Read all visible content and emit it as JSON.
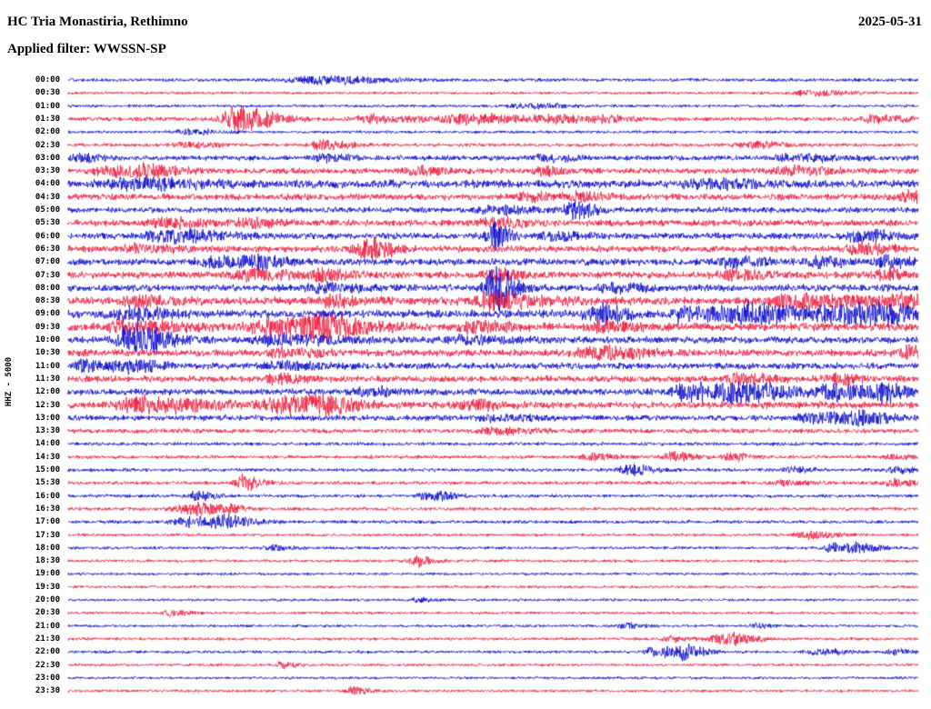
{
  "header": {
    "station": "HC Tria Monastiria, Rethimno",
    "date": "2025-05-31",
    "filter_line": "Applied filter: WWSSN-SP"
  },
  "axis": {
    "scale_label": "HHZ - 5000"
  },
  "chart_data": {
    "type": "line",
    "subtype": "helicorder-seismogram",
    "title": "HC Tria Monastiria, Rethimno",
    "date": "2025-05-31",
    "filter": "WWSSN-SP",
    "channel": "HHZ",
    "scale": 5000,
    "minutes_per_line": 30,
    "colors": {
      "blue": "#0000cc",
      "red": "#ee1133",
      "label": "#000000"
    },
    "event_format": "[x_fraction_of_line, amplitude_px, width_px]",
    "rows": [
      {
        "time": "00:00",
        "color": "blue",
        "noise": 1.5,
        "events": [
          [
            0.29,
            4,
            30
          ]
        ]
      },
      {
        "time": "00:30",
        "color": "red",
        "noise": 1.2,
        "events": [
          [
            0.87,
            3,
            18
          ]
        ]
      },
      {
        "time": "01:00",
        "color": "blue",
        "noise": 1.3,
        "events": [
          [
            0.54,
            2.5,
            18
          ]
        ]
      },
      {
        "time": "01:30",
        "color": "red",
        "noise": 1.8,
        "events": [
          [
            0.2,
            14,
            16
          ],
          [
            0.36,
            4,
            22
          ],
          [
            0.47,
            5,
            26
          ],
          [
            0.57,
            3.5,
            18
          ],
          [
            0.63,
            3,
            14
          ],
          [
            0.95,
            4,
            14
          ]
        ]
      },
      {
        "time": "02:00",
        "color": "blue",
        "noise": 1.3,
        "events": [
          [
            0.14,
            2.5,
            14
          ]
        ]
      },
      {
        "time": "02:30",
        "color": "red",
        "noise": 1.5,
        "events": [
          [
            0.3,
            6,
            11
          ],
          [
            0.14,
            3,
            14
          ],
          [
            0.8,
            3,
            18
          ]
        ]
      },
      {
        "time": "03:00",
        "color": "blue",
        "noise": 2.2,
        "events": [
          [
            0.015,
            4,
            10
          ],
          [
            0.3,
            3.5,
            12
          ],
          [
            0.56,
            4,
            12
          ],
          [
            0.85,
            3,
            26
          ]
        ]
      },
      {
        "time": "03:30",
        "color": "red",
        "noise": 2.5,
        "events": [
          [
            0.05,
            4,
            22
          ],
          [
            0.09,
            4,
            18
          ],
          [
            0.41,
            4,
            12
          ],
          [
            0.56,
            3.5,
            12
          ],
          [
            0.85,
            4,
            18
          ]
        ]
      },
      {
        "time": "04:00",
        "color": "blue",
        "noise": 3.5,
        "events": [
          [
            0.08,
            4,
            36
          ],
          [
            0.75,
            3.5,
            28
          ]
        ]
      },
      {
        "time": "04:30",
        "color": "red",
        "noise": 2.8,
        "events": [
          [
            0.54,
            4,
            14
          ],
          [
            0.6,
            4,
            12
          ],
          [
            0.99,
            6,
            12
          ]
        ]
      },
      {
        "time": "05:00",
        "color": "blue",
        "noise": 2.5,
        "events": [
          [
            0.595,
            9,
            9
          ],
          [
            0.5,
            4,
            18
          ]
        ]
      },
      {
        "time": "05:30",
        "color": "red",
        "noise": 2.8,
        "events": [
          [
            0.11,
            4,
            18
          ],
          [
            0.21,
            4,
            14
          ],
          [
            0.5,
            5,
            16
          ]
        ]
      },
      {
        "time": "06:00",
        "color": "blue",
        "noise": 2.8,
        "events": [
          [
            0.12,
            6,
            26
          ],
          [
            0.5,
            15,
            7
          ],
          [
            0.57,
            4,
            14
          ],
          [
            0.93,
            5,
            18
          ]
        ]
      },
      {
        "time": "06:30",
        "color": "red",
        "noise": 2.8,
        "events": [
          [
            0.35,
            12,
            11
          ],
          [
            0.08,
            4,
            18
          ],
          [
            0.93,
            6,
            14
          ]
        ]
      },
      {
        "time": "07:00",
        "color": "blue",
        "noise": 3.0,
        "events": [
          [
            0.17,
            5,
            18
          ],
          [
            0.22,
            5,
            14
          ],
          [
            0.78,
            5,
            14
          ],
          [
            0.88,
            5,
            12
          ],
          [
            0.96,
            6,
            11
          ]
        ]
      },
      {
        "time": "07:30",
        "color": "red",
        "noise": 3.0,
        "events": [
          [
            0.21,
            6,
            18
          ],
          [
            0.3,
            5,
            14
          ],
          [
            0.5,
            6,
            11
          ],
          [
            0.78,
            5,
            14
          ],
          [
            0.96,
            5,
            10
          ]
        ]
      },
      {
        "time": "08:00",
        "color": "blue",
        "noise": 3.0,
        "events": [
          [
            0.5,
            26,
            9
          ],
          [
            0.3,
            4,
            18
          ],
          [
            0.64,
            4,
            14
          ]
        ]
      },
      {
        "time": "08:30",
        "color": "red",
        "noise": 3.5,
        "events": [
          [
            0.5,
            8,
            22
          ],
          [
            0.31,
            5,
            14
          ],
          [
            0.08,
            5,
            18
          ],
          [
            0.86,
            6,
            36
          ],
          [
            0.98,
            5,
            14
          ]
        ]
      },
      {
        "time": "09:00",
        "color": "blue",
        "noise": 3.5,
        "events": [
          [
            0.07,
            6,
            18
          ],
          [
            0.62,
            10,
            13
          ],
          [
            0.73,
            8,
            18
          ],
          [
            0.8,
            9,
            26
          ],
          [
            0.9,
            10,
            22
          ],
          [
            0.96,
            9,
            13
          ]
        ]
      },
      {
        "time": "09:30",
        "color": "red",
        "noise": 3.5,
        "events": [
          [
            0.07,
            7,
            22
          ],
          [
            0.25,
            9,
            30
          ],
          [
            0.3,
            8,
            18
          ],
          [
            0.475,
            7,
            14
          ],
          [
            0.63,
            5,
            14
          ]
        ]
      },
      {
        "time": "10:00",
        "color": "blue",
        "noise": 3.0,
        "events": [
          [
            0.075,
            16,
            16
          ],
          [
            0.25,
            5,
            26
          ],
          [
            0.47,
            4,
            18
          ]
        ]
      },
      {
        "time": "10:30",
        "color": "red",
        "noise": 3.0,
        "events": [
          [
            0.62,
            6,
            22
          ],
          [
            0.99,
            6,
            13
          ],
          [
            0.25,
            4,
            18
          ]
        ]
      },
      {
        "time": "11:00",
        "color": "blue",
        "noise": 2.8,
        "events": [
          [
            0.02,
            6,
            11
          ],
          [
            0.07,
            7,
            13
          ],
          [
            0.25,
            4,
            18
          ]
        ]
      },
      {
        "time": "11:30",
        "color": "red",
        "noise": 2.8,
        "events": [
          [
            0.24,
            5,
            14
          ],
          [
            0.79,
            5,
            14
          ],
          [
            0.9,
            5,
            11
          ]
        ]
      },
      {
        "time": "12:00",
        "color": "blue",
        "noise": 2.8,
        "events": [
          [
            0.73,
            8,
            18
          ],
          [
            0.79,
            10,
            22
          ],
          [
            0.9,
            9,
            18
          ],
          [
            0.96,
            7,
            11
          ],
          [
            0.35,
            4,
            14
          ]
        ]
      },
      {
        "time": "12:30",
        "color": "red",
        "noise": 3.0,
        "events": [
          [
            0.09,
            8,
            30
          ],
          [
            0.25,
            9,
            22
          ],
          [
            0.3,
            7,
            14
          ],
          [
            0.47,
            5,
            14
          ]
        ]
      },
      {
        "time": "13:00",
        "color": "blue",
        "noise": 2.5,
        "events": [
          [
            0.88,
            6,
            22
          ],
          [
            0.93,
            5,
            13
          ],
          [
            0.5,
            3,
            18
          ]
        ]
      },
      {
        "time": "13:30",
        "color": "red",
        "noise": 2.0,
        "events": [
          [
            0.5,
            3,
            18
          ]
        ]
      },
      {
        "time": "14:00",
        "color": "blue",
        "noise": 1.5,
        "events": []
      },
      {
        "time": "14:30",
        "color": "red",
        "noise": 1.5,
        "events": [
          [
            0.615,
            4,
            11
          ],
          [
            0.71,
            5,
            9
          ],
          [
            0.78,
            4,
            9
          ],
          [
            0.97,
            3,
            9
          ]
        ]
      },
      {
        "time": "15:00",
        "color": "blue",
        "noise": 1.5,
        "events": [
          [
            0.66,
            6,
            11
          ],
          [
            0.85,
            3,
            9
          ],
          [
            0.97,
            4,
            9
          ]
        ]
      },
      {
        "time": "15:30",
        "color": "red",
        "noise": 1.5,
        "events": [
          [
            0.205,
            8,
            9
          ],
          [
            0.84,
            3,
            11
          ],
          [
            0.97,
            4,
            9
          ]
        ]
      },
      {
        "time": "16:00",
        "color": "blue",
        "noise": 1.5,
        "events": [
          [
            0.15,
            5,
            8
          ],
          [
            0.42,
            4,
            9
          ],
          [
            0.44,
            3,
            8
          ]
        ]
      },
      {
        "time": "16:30",
        "color": "red",
        "noise": 1.5,
        "events": [
          [
            0.135,
            4,
            13
          ],
          [
            0.155,
            4,
            11
          ],
          [
            0.19,
            3,
            9
          ]
        ]
      },
      {
        "time": "17:00",
        "color": "blue",
        "noise": 1.5,
        "events": [
          [
            0.14,
            5,
            18
          ],
          [
            0.185,
            5,
            13
          ]
        ]
      },
      {
        "time": "17:30",
        "color": "red",
        "noise": 1.3,
        "events": [
          [
            0.87,
            4,
            13
          ]
        ]
      },
      {
        "time": "18:00",
        "color": "blue",
        "noise": 1.3,
        "events": [
          [
            0.24,
            3,
            9
          ],
          [
            0.9,
            5,
            13
          ],
          [
            0.93,
            4,
            9
          ]
        ]
      },
      {
        "time": "18:30",
        "color": "red",
        "noise": 1.3,
        "events": [
          [
            0.41,
            6,
            7
          ]
        ]
      },
      {
        "time": "19:00",
        "color": "blue",
        "noise": 1.2,
        "events": []
      },
      {
        "time": "19:30",
        "color": "red",
        "noise": 1.2,
        "events": []
      },
      {
        "time": "20:00",
        "color": "blue",
        "noise": 1.2,
        "events": [
          [
            0.41,
            3,
            7
          ]
        ]
      },
      {
        "time": "20:30",
        "color": "red",
        "noise": 1.2,
        "events": [
          [
            0.12,
            3,
            9
          ]
        ]
      },
      {
        "time": "21:00",
        "color": "blue",
        "noise": 1.2,
        "events": [
          [
            0.655,
            3,
            7
          ],
          [
            0.81,
            3,
            7
          ]
        ]
      },
      {
        "time": "21:30",
        "color": "red",
        "noise": 1.3,
        "events": [
          [
            0.77,
            7,
            13
          ],
          [
            0.71,
            3,
            9
          ]
        ]
      },
      {
        "time": "22:00",
        "color": "blue",
        "noise": 1.3,
        "events": [
          [
            0.69,
            6,
            11
          ],
          [
            0.725,
            7,
            9
          ],
          [
            0.88,
            3,
            13
          ],
          [
            0.97,
            3,
            9
          ]
        ]
      },
      {
        "time": "22:30",
        "color": "red",
        "noise": 1.2,
        "events": [
          [
            0.25,
            3,
            7
          ]
        ]
      },
      {
        "time": "23:00",
        "color": "blue",
        "noise": 1.2,
        "events": []
      },
      {
        "time": "23:30",
        "color": "red",
        "noise": 1.2,
        "events": [
          [
            0.335,
            4,
            9
          ]
        ]
      }
    ]
  }
}
